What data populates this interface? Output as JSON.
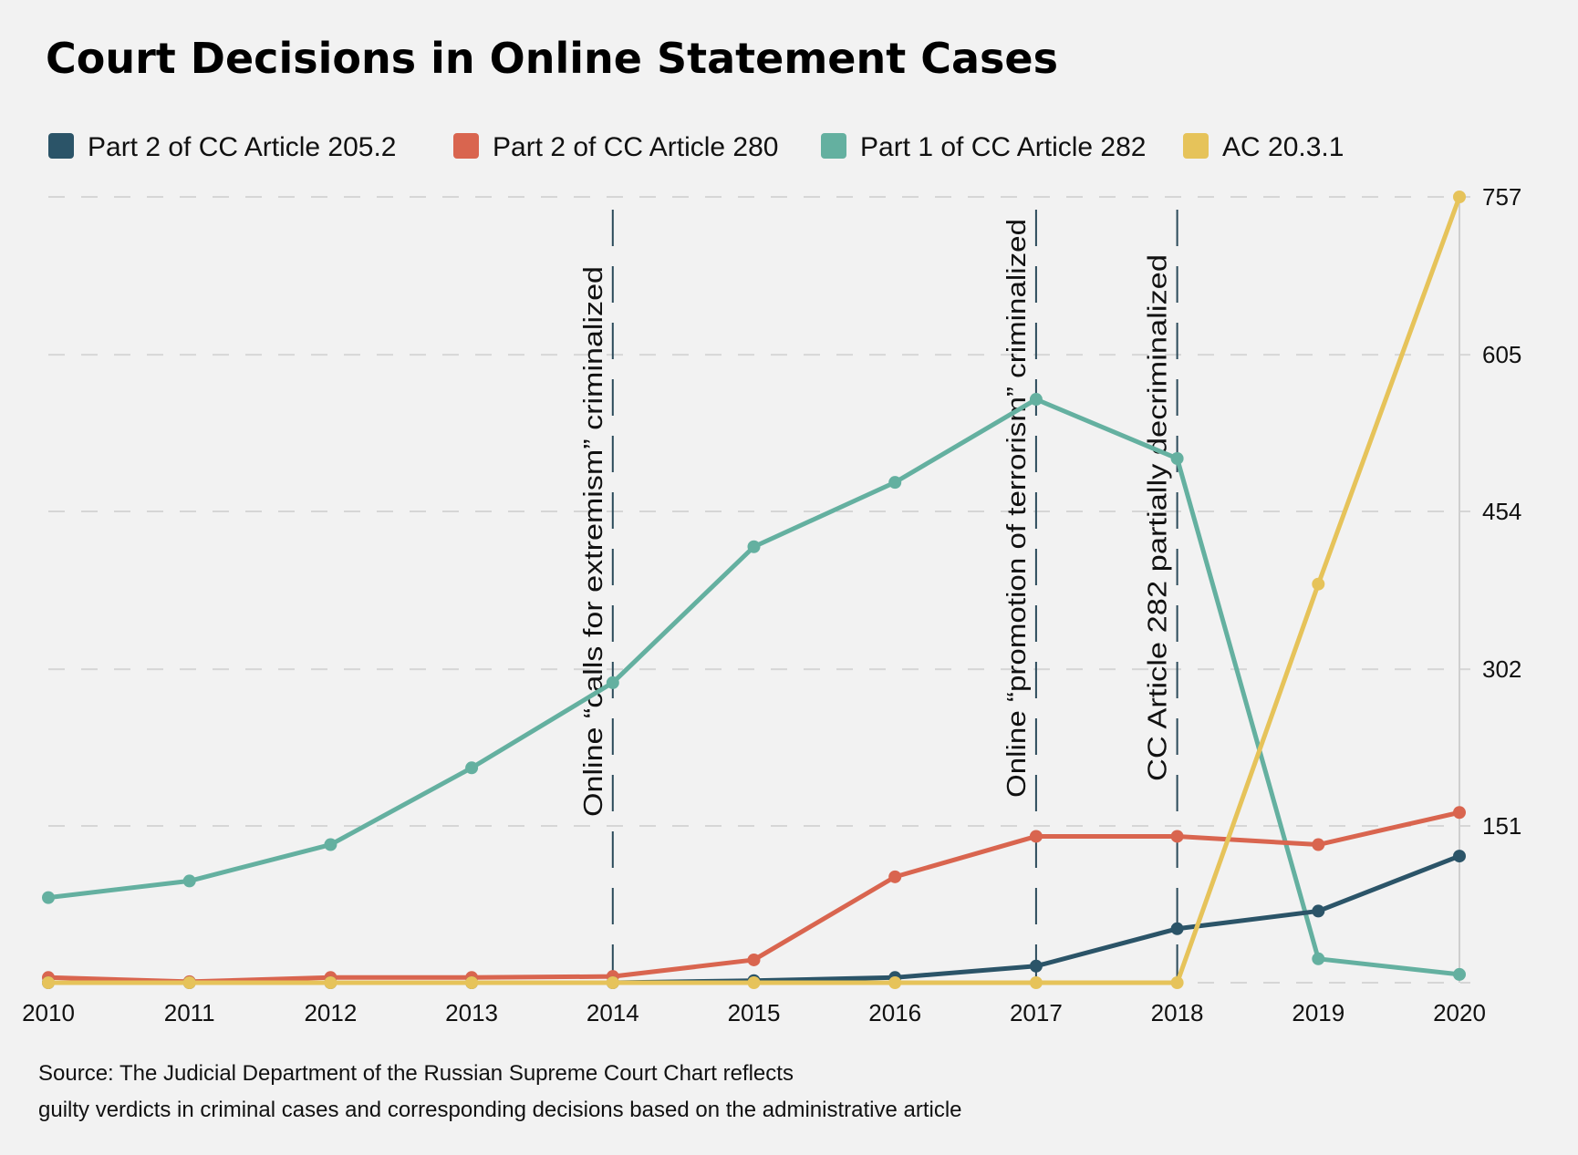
{
  "chart_data": {
    "type": "line",
    "title": "Court Decisions in Online Statement Cases",
    "x": [
      2010,
      2011,
      2012,
      2013,
      2014,
      2015,
      2016,
      2017,
      2018,
      2019,
      2020
    ],
    "xlim": [
      2010,
      2020
    ],
    "ylim": [
      0,
      757
    ],
    "yticks": [
      151,
      302,
      454,
      605,
      757
    ],
    "y_axis_side": "right",
    "grid": "horizontal dashed",
    "legend_position": "top",
    "series": [
      {
        "name": "Part 2 of CC Article 205.2",
        "color": "#2b5468",
        "values": [
          0,
          0,
          0,
          0,
          0,
          2,
          5,
          16,
          52,
          69,
          122
        ]
      },
      {
        "name": "Part 2 of CC Article 280",
        "color": "#d9654f",
        "values": [
          5,
          1,
          5,
          5,
          6,
          22,
          102,
          141,
          141,
          133,
          164
        ]
      },
      {
        "name": "Part 1 of CC Article 282",
        "color": "#64b0a0",
        "values": [
          82,
          98,
          133,
          207,
          289,
          420,
          482,
          562,
          505,
          23,
          8
        ]
      },
      {
        "name": "AC 20.3.1",
        "color": "#e6c35a",
        "values": [
          0,
          0,
          0,
          0,
          0,
          0,
          0,
          0,
          0,
          384,
          757
        ]
      }
    ],
    "annotations": [
      {
        "x": 2014,
        "text": "Online “calls for extremism” criminalized"
      },
      {
        "x": 2017,
        "text": "Online “promotion of terrorism” criminalized"
      },
      {
        "x": 2018,
        "text": "CC Article 282 partially decriminalized"
      }
    ],
    "source_lines": [
      "Source: The Judicial Department of the Russian Supreme Court Chart reflects",
      "guilty verdicts in criminal cases and corresponding decisions based on the administrative article"
    ]
  }
}
